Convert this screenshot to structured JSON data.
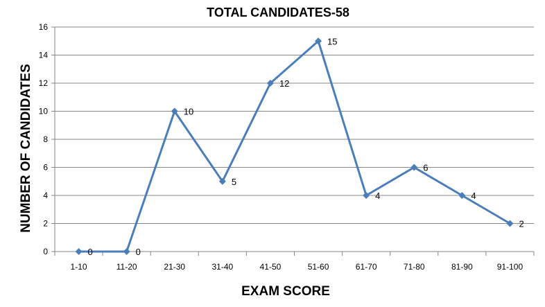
{
  "chart_data": {
    "type": "line",
    "title": "TOTAL CANDIDATES-58",
    "xlabel": "EXAM SCORE",
    "ylabel": "NUMBER OF CANDIDATES",
    "categories": [
      "1-10",
      "11-20",
      "21-30",
      "31-40",
      "41-50",
      "51-60",
      "61-70",
      "71-80",
      "81-90",
      "91-100"
    ],
    "series": [
      {
        "name": "Number of Candidates",
        "values": [
          0,
          0,
          10,
          5,
          12,
          15,
          4,
          6,
          4,
          2
        ],
        "color": "#4a7ebb"
      }
    ],
    "ylim": [
      0,
      16
    ],
    "yticks": [
      0,
      2,
      4,
      6,
      8,
      10,
      12,
      14,
      16
    ],
    "grid": true,
    "legend": "none",
    "data_labels": true,
    "marker": "diamond"
  },
  "colors": {
    "line": "#4a7ebb",
    "grid": "#868686",
    "axis": "#868686"
  }
}
